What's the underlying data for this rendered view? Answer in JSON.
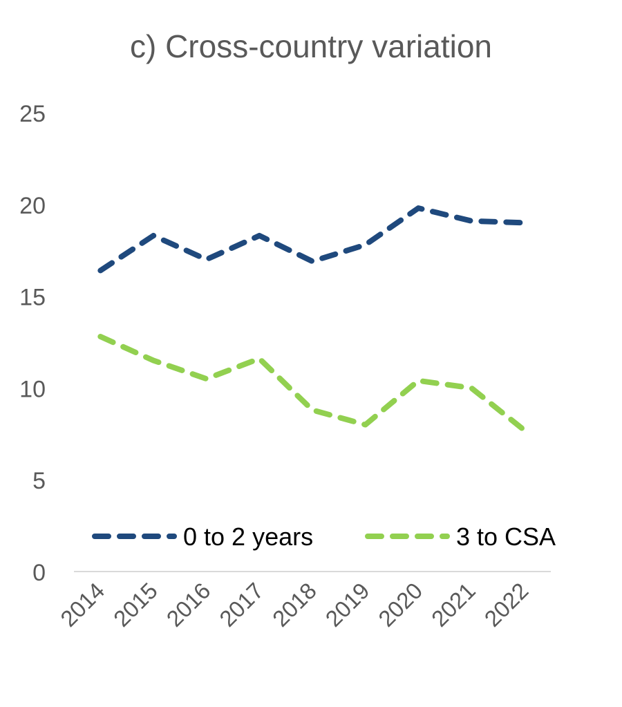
{
  "chart_data": {
    "type": "line",
    "title": "c) Cross-country variation",
    "xlabel": "",
    "ylabel": "",
    "categories": [
      "2014",
      "2015",
      "2016",
      "2017",
      "2018",
      "2019",
      "2020",
      "2021",
      "2022"
    ],
    "ylim": [
      0,
      25
    ],
    "yticks": [
      0,
      5,
      10,
      15,
      20,
      25
    ],
    "grid": false,
    "legend_position": "bottom-inside",
    "series": [
      {
        "name": "0 to 2 years",
        "color": "#1F497D",
        "style": "dashed",
        "values": [
          16.4,
          18.3,
          17.0,
          18.3,
          16.9,
          17.8,
          19.8,
          19.1,
          19.0
        ]
      },
      {
        "name": "3 to CSA",
        "color": "#92D050",
        "style": "dashed",
        "values": [
          12.8,
          11.5,
          10.5,
          11.6,
          8.8,
          8.0,
          10.4,
          10.0,
          7.7
        ]
      }
    ]
  }
}
